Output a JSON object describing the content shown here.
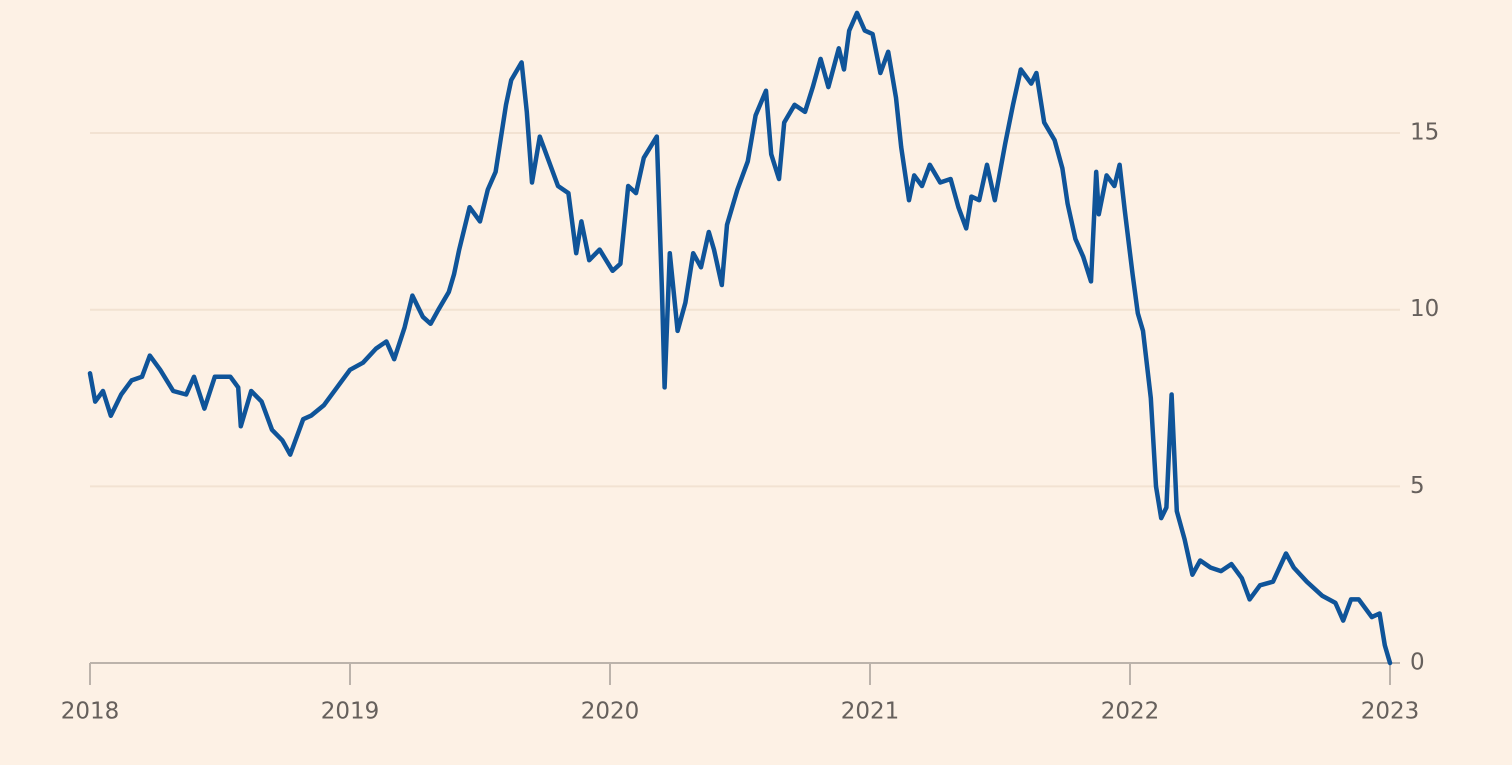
{
  "chart_data": {
    "type": "line",
    "color": "#0f5499",
    "x": [
      2018.0,
      2018.02,
      2018.05,
      2018.08,
      2018.12,
      2018.16,
      2018.2,
      2018.23,
      2018.27,
      2018.32,
      2018.37,
      2018.4,
      2018.44,
      2018.48,
      2018.54,
      2018.57,
      2018.58,
      2018.62,
      2018.66,
      2018.7,
      2018.74,
      2018.77,
      2018.82,
      2018.85,
      2018.9,
      2018.95,
      2019.0,
      2019.05,
      2019.1,
      2019.14,
      2019.17,
      2019.21,
      2019.24,
      2019.28,
      2019.31,
      2019.34,
      2019.38,
      2019.4,
      2019.42,
      2019.46,
      2019.5,
      2019.53,
      2019.56,
      2019.6,
      2019.62,
      2019.66,
      2019.68,
      2019.7,
      2019.73,
      2019.76,
      2019.8,
      2019.84,
      2019.87,
      2019.89,
      2019.92,
      2019.96,
      2020.01,
      2020.04,
      2020.07,
      2020.1,
      2020.13,
      2020.18,
      2020.2,
      2020.21,
      2020.23,
      2020.26,
      2020.29,
      2020.32,
      2020.35,
      2020.38,
      2020.4,
      2020.43,
      2020.45,
      2020.49,
      2020.53,
      2020.56,
      2020.6,
      2020.62,
      2020.65,
      2020.67,
      2020.71,
      2020.75,
      2020.78,
      2020.81,
      2020.84,
      2020.88,
      2020.9,
      2020.92,
      2020.95,
      2020.98,
      2021.01,
      2021.04,
      2021.07,
      2021.1,
      2021.12,
      2021.15,
      2021.17,
      2021.2,
      2021.23,
      2021.27,
      2021.31,
      2021.34,
      2021.37,
      2021.39,
      2021.42,
      2021.45,
      2021.48,
      2021.52,
      2021.55,
      2021.58,
      2021.62,
      2021.64,
      2021.67,
      2021.71,
      2021.74,
      2021.76,
      2021.79,
      2021.82,
      2021.85,
      2021.87,
      2021.88,
      2021.91,
      2021.94,
      2021.96,
      2021.98,
      2022.01,
      2022.03,
      2022.05,
      2022.08,
      2022.1,
      2022.12,
      2022.14,
      2022.16,
      2022.18,
      2022.21,
      2022.24,
      2022.27,
      2022.31,
      2022.35,
      2022.39,
      2022.43,
      2022.46,
      2022.5,
      2022.55,
      2022.6,
      2022.63,
      2022.68,
      2022.74,
      2022.79,
      2022.82,
      2022.85,
      2022.88,
      2022.93,
      2022.96,
      2022.98,
      2023.0
    ],
    "values": [
      8.2,
      7.4,
      7.7,
      7.0,
      7.6,
      8.0,
      8.1,
      8.7,
      8.3,
      7.7,
      7.6,
      8.1,
      7.2,
      8.1,
      8.1,
      7.8,
      6.7,
      7.7,
      7.4,
      6.6,
      6.3,
      5.9,
      6.9,
      7.0,
      7.3,
      7.8,
      8.3,
      8.5,
      8.9,
      9.1,
      8.6,
      9.5,
      10.4,
      9.8,
      9.6,
      10.0,
      10.5,
      11.0,
      11.7,
      12.9,
      12.5,
      13.4,
      13.9,
      15.8,
      16.5,
      17.0,
      15.6,
      13.6,
      14.9,
      14.3,
      13.5,
      13.3,
      11.6,
      12.5,
      11.4,
      11.7,
      11.1,
      11.3,
      13.5,
      13.3,
      14.3,
      14.9,
      10.5,
      7.8,
      11.6,
      9.4,
      10.2,
      11.6,
      11.2,
      12.2,
      11.7,
      10.7,
      12.4,
      13.4,
      14.2,
      15.5,
      16.2,
      14.4,
      13.7,
      15.3,
      15.8,
      15.6,
      16.3,
      17.1,
      16.3,
      17.4,
      16.8,
      17.9,
      18.4,
      17.9,
      17.8,
      16.7,
      17.3,
      16.0,
      14.6,
      13.1,
      13.8,
      13.5,
      14.1,
      13.6,
      13.7,
      12.9,
      12.3,
      13.2,
      13.1,
      14.1,
      13.1,
      14.7,
      15.8,
      16.8,
      16.4,
      16.7,
      15.3,
      14.8,
      14.0,
      13.0,
      12.0,
      11.5,
      10.8,
      13.9,
      12.7,
      13.8,
      13.5,
      14.1,
      12.8,
      11.0,
      9.9,
      9.4,
      7.5,
      5.0,
      4.1,
      4.4,
      7.6,
      4.3,
      3.5,
      2.5,
      2.9,
      2.7,
      2.6,
      2.8,
      2.4,
      1.8,
      2.2,
      2.3,
      3.1,
      2.7,
      2.3,
      1.9,
      1.7,
      1.2,
      1.8,
      1.8,
      1.3,
      1.4,
      0.5,
      0.0
    ],
    "xlim": [
      2018,
      2023
    ],
    "xticks": [
      2018,
      2019,
      2020,
      2021,
      2022,
      2023
    ],
    "ylim": [
      0,
      18.5
    ],
    "yticks": [
      0,
      5,
      10,
      15
    ],
    "grid": true
  }
}
